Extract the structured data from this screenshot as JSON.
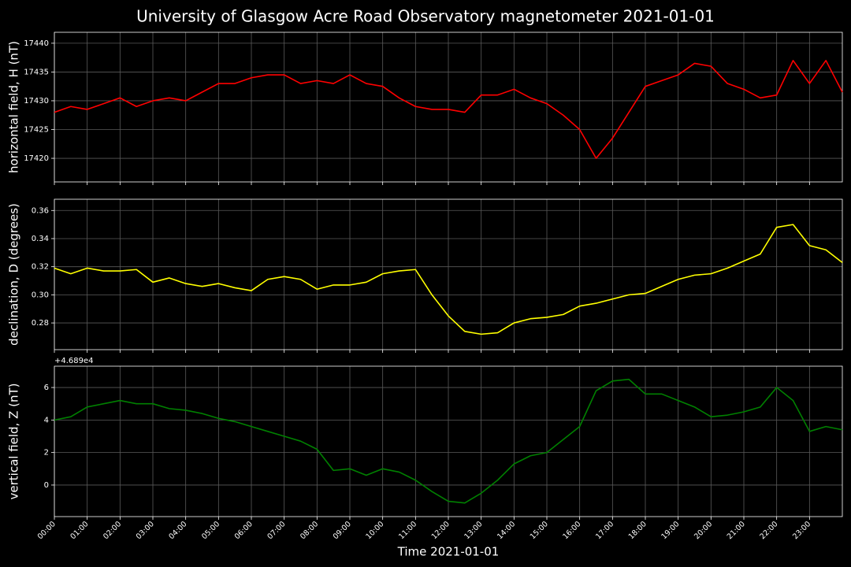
{
  "title": "University of Glasgow Acre Road Observatory magnetometer 2021-01-01",
  "xlabel": "Time 2021-01-01",
  "chart_data": [
    {
      "type": "line",
      "ylabel": "horizontal field, H (nT)",
      "color": "#ff0000",
      "grid": true,
      "x": [
        0,
        0.5,
        1,
        1.5,
        2,
        2.5,
        3,
        3.5,
        4,
        4.5,
        5,
        5.5,
        6,
        6.5,
        7,
        7.5,
        8,
        8.5,
        9,
        9.5,
        10,
        10.5,
        11,
        11.5,
        12,
        12.5,
        13,
        13.5,
        14,
        14.5,
        15,
        15.5,
        16,
        16.5,
        17,
        17.5,
        18,
        18.5,
        19,
        19.5,
        20,
        20.5,
        21,
        21.5,
        22,
        22.5,
        23,
        23.5,
        24
      ],
      "values": [
        17428,
        17429,
        17428.5,
        17429.5,
        17430.5,
        17429,
        17430,
        17430.5,
        17430,
        17431.5,
        17433,
        17433,
        17434,
        17434.5,
        17434.5,
        17433,
        17433.5,
        17433,
        17434.5,
        17433,
        17432.5,
        17430.5,
        17429,
        17428.5,
        17428.5,
        17428,
        17431,
        17431,
        17432,
        17430.5,
        17429.5,
        17427.5,
        17425,
        17420,
        17423.5,
        17428,
        17432.5,
        17433.5,
        17434.5,
        17436.5,
        17436,
        17433,
        17432,
        17430.5,
        17431,
        17437,
        17433,
        17437,
        17431.5
      ],
      "ylim": [
        17415.9,
        17441.9
      ],
      "yticks": [
        17420,
        17425,
        17430,
        17435,
        17440
      ]
    },
    {
      "type": "line",
      "ylabel": "declination, D (degrees)",
      "color": "#ffff00",
      "grid": true,
      "x": [
        0,
        0.5,
        1,
        1.5,
        2,
        2.5,
        3,
        3.5,
        4,
        4.5,
        5,
        5.5,
        6,
        6.5,
        7,
        7.5,
        8,
        8.5,
        9,
        9.5,
        10,
        10.5,
        11,
        11.5,
        12,
        12.5,
        13,
        13.5,
        14,
        14.5,
        15,
        15.5,
        16,
        16.5,
        17,
        17.5,
        18,
        18.5,
        19,
        19.5,
        20,
        20.5,
        21,
        21.5,
        22,
        22.5,
        23,
        23.5,
        24
      ],
      "values": [
        0.319,
        0.315,
        0.319,
        0.317,
        0.317,
        0.318,
        0.309,
        0.312,
        0.308,
        0.306,
        0.308,
        0.305,
        0.303,
        0.311,
        0.313,
        0.311,
        0.304,
        0.307,
        0.307,
        0.309,
        0.315,
        0.317,
        0.318,
        0.3,
        0.285,
        0.274,
        0.272,
        0.273,
        0.28,
        0.283,
        0.284,
        0.286,
        0.292,
        0.294,
        0.297,
        0.3,
        0.301,
        0.306,
        0.311,
        0.314,
        0.315,
        0.319,
        0.324,
        0.329,
        0.348,
        0.35,
        0.335,
        0.332,
        0.323
      ],
      "ylim": [
        0.261,
        0.368
      ],
      "yticks": [
        {
          "value": 0.28,
          "label": "0.28"
        },
        {
          "value": 0.3,
          "label": "0.30"
        },
        {
          "value": 0.32,
          "label": "0.32"
        },
        {
          "value": 0.34,
          "label": "0.34"
        },
        {
          "value": 0.36,
          "label": "0.36"
        }
      ]
    },
    {
      "type": "line",
      "ylabel": "vertical field, Z (nT)",
      "color": "#008000",
      "grid": true,
      "offset_text": "+4.689e4",
      "x": [
        0,
        0.5,
        1,
        1.5,
        2,
        2.5,
        3,
        3.5,
        4,
        4.5,
        5,
        5.5,
        6,
        6.5,
        7,
        7.5,
        8,
        8.5,
        9,
        9.5,
        10,
        10.5,
        11,
        11.5,
        12,
        12.5,
        13,
        13.5,
        14,
        14.5,
        15,
        15.5,
        16,
        16.5,
        17,
        17.5,
        18,
        18.5,
        19,
        19.5,
        20,
        20.5,
        21,
        21.5,
        22,
        22.5,
        23,
        23.5,
        24
      ],
      "values": [
        4.0,
        4.2,
        4.8,
        5.0,
        5.2,
        5.0,
        5.0,
        4.7,
        4.6,
        4.4,
        4.1,
        3.9,
        3.6,
        3.3,
        3.0,
        2.7,
        2.2,
        0.9,
        1.0,
        0.6,
        1.0,
        0.8,
        0.3,
        -0.4,
        -1.0,
        -1.1,
        -0.5,
        0.3,
        1.3,
        1.8,
        2.0,
        2.8,
        3.6,
        5.8,
        6.4,
        6.5,
        5.6,
        5.6,
        5.2,
        4.8,
        4.2,
        4.3,
        4.5,
        4.8,
        6.0,
        5.2,
        3.3,
        3.6,
        3.4
      ],
      "ylim": [
        -1.94,
        7.31
      ],
      "yticks": [
        0,
        2,
        4,
        6
      ],
      "xlim": [
        0,
        24
      ],
      "xticks": [
        {
          "value": 0,
          "label": "00:00"
        },
        {
          "value": 1,
          "label": "01:00"
        },
        {
          "value": 2,
          "label": "02:00"
        },
        {
          "value": 3,
          "label": "03:00"
        },
        {
          "value": 4,
          "label": "04:00"
        },
        {
          "value": 5,
          "label": "05:00"
        },
        {
          "value": 6,
          "label": "06:00"
        },
        {
          "value": 7,
          "label": "07:00"
        },
        {
          "value": 8,
          "label": "08:00"
        },
        {
          "value": 9,
          "label": "09:00"
        },
        {
          "value": 10,
          "label": "10:00"
        },
        {
          "value": 11,
          "label": "11:00"
        },
        {
          "value": 12,
          "label": "12:00"
        },
        {
          "value": 13,
          "label": "13:00"
        },
        {
          "value": 14,
          "label": "14:00"
        },
        {
          "value": 15,
          "label": "15:00"
        },
        {
          "value": 16,
          "label": "16:00"
        },
        {
          "value": 17,
          "label": "17:00"
        },
        {
          "value": 18,
          "label": "18:00"
        },
        {
          "value": 19,
          "label": "19:00"
        },
        {
          "value": 20,
          "label": "20:00"
        },
        {
          "value": 21,
          "label": "21:00"
        },
        {
          "value": 22,
          "label": "22:00"
        },
        {
          "value": 23,
          "label": "23:00"
        }
      ]
    }
  ]
}
